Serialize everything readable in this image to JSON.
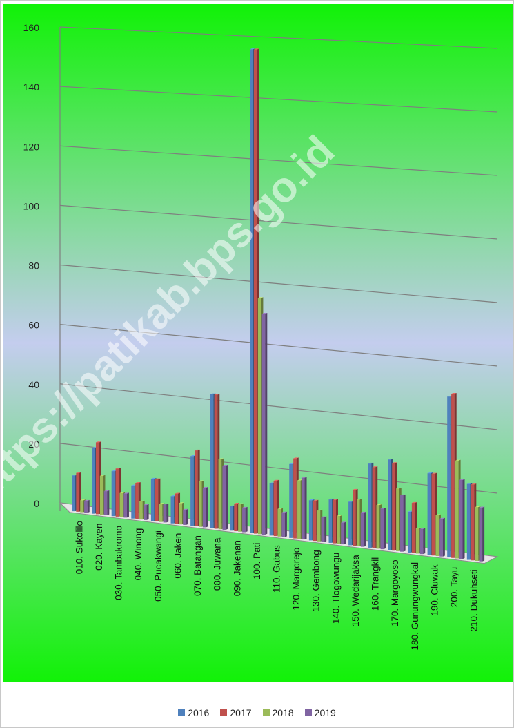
{
  "chart_data": {
    "type": "bar",
    "title": "",
    "xlabel": "",
    "ylabel": "",
    "ylim": [
      0,
      160
    ],
    "yticks": [
      "0",
      "20",
      "40",
      "60",
      "80",
      "100",
      "120",
      "140",
      "160"
    ],
    "grid": true,
    "legend_position": "bottom",
    "watermark": "https://patikab.bps.go.id",
    "categories": [
      "010. Sukolilo",
      "020. Kayen",
      "030. Tambakromo",
      "040. Winong",
      "050. Pucakwangi",
      "060. Jaken",
      "070. Batangan",
      "080. Juwana",
      "090. Jakenan",
      "100. Pati",
      "110. Gabus",
      "120. Margorejo",
      "130. Gembong",
      "140. Tlogowungu",
      "150. Wedarijaksa",
      "160. Trangkil",
      "170. Margoyoso",
      "180. Gunungwungkal",
      "190. Cluwak",
      "200. Tayu",
      "210. Dukuhseti"
    ],
    "series": [
      {
        "name": "2016",
        "color": "#4F81BD",
        "values": [
          12,
          22,
          15,
          11,
          14,
          9,
          23,
          44,
          8,
          158,
          17,
          24,
          13,
          14,
          14,
          27,
          29,
          13,
          26,
          51,
          24
        ]
      },
      {
        "name": "2017",
        "color": "#C0504D",
        "values": [
          13,
          24,
          16,
          12,
          14,
          10,
          25,
          44,
          9,
          158,
          18,
          26,
          13,
          14,
          18,
          26,
          28,
          16,
          26,
          52,
          24
        ]
      },
      {
        "name": "2018",
        "color": "#9BBB59",
        "values": [
          4,
          13,
          8,
          6,
          6,
          7,
          15,
          23,
          9,
          77,
          9,
          19,
          10,
          9,
          15,
          14,
          20,
          8,
          13,
          31,
          17
        ]
      },
      {
        "name": "2019",
        "color": "#8064A2",
        "values": [
          4,
          8,
          8,
          5,
          6,
          5,
          13,
          21,
          8,
          72,
          8,
          20,
          8,
          7,
          11,
          13,
          18,
          8,
          12,
          25,
          17
        ]
      }
    ]
  }
}
